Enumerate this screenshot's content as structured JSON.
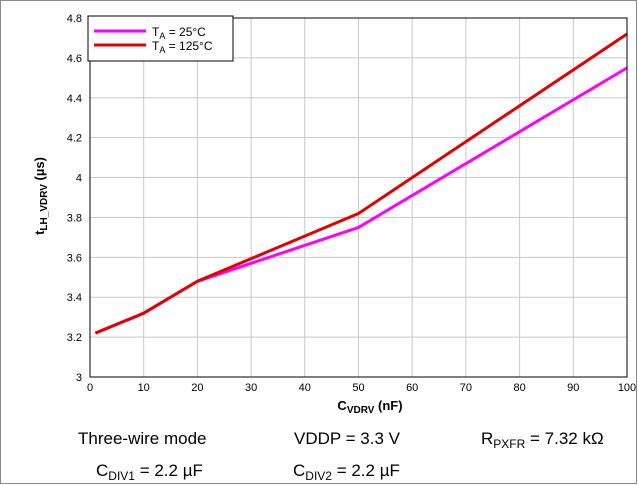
{
  "chart_data": {
    "type": "line",
    "title": "",
    "xlabel": {
      "main": "C",
      "sub": "VDRV",
      "unit": " (nF)"
    },
    "ylabel": {
      "main": "t",
      "sub": "LH_VDRV",
      "unit": " (µs)"
    },
    "xlim": [
      0,
      100
    ],
    "ylim": [
      3,
      4.8
    ],
    "xticks": [
      "0",
      "10",
      "20",
      "30",
      "40",
      "50",
      "60",
      "70",
      "80",
      "90",
      "100"
    ],
    "yticks": [
      "3",
      "3.2",
      "3.4",
      "3.6",
      "3.8",
      "4",
      "4.2",
      "4.4",
      "4.6",
      "4.8"
    ],
    "grid": true,
    "legend_position": "top-left",
    "series": [
      {
        "name": "TA = 25°C",
        "name_parts": {
          "main": "T",
          "sub": "A",
          "rest": " = 25°C"
        },
        "color": "#ff00ff",
        "x": [
          1,
          10,
          20,
          50,
          100
        ],
        "y": [
          3.22,
          3.32,
          3.48,
          3.75,
          4.55
        ]
      },
      {
        "name": "TA = 125°C",
        "name_parts": {
          "main": "T",
          "sub": "A",
          "rest": " = 125°C"
        },
        "color": "#e00000",
        "x": [
          1,
          10,
          20,
          50,
          100
        ],
        "y": [
          3.22,
          3.32,
          3.48,
          3.82,
          4.72
        ]
      }
    ]
  },
  "conditions": {
    "mode": "Three-wire mode",
    "vddp": "VDDP = 3.3 V",
    "rpxfr_main": "R",
    "rpxfr_sub": "PXFR",
    "rpxfr_rest": " = 7.32 kΩ",
    "cdiv1_main": "C",
    "cdiv1_sub": "DIV1",
    "cdiv1_rest": " = 2.2 µF",
    "cdiv2_main": "C",
    "cdiv2_sub": "DIV2",
    "cdiv2_rest": " = 2.2 µF"
  }
}
